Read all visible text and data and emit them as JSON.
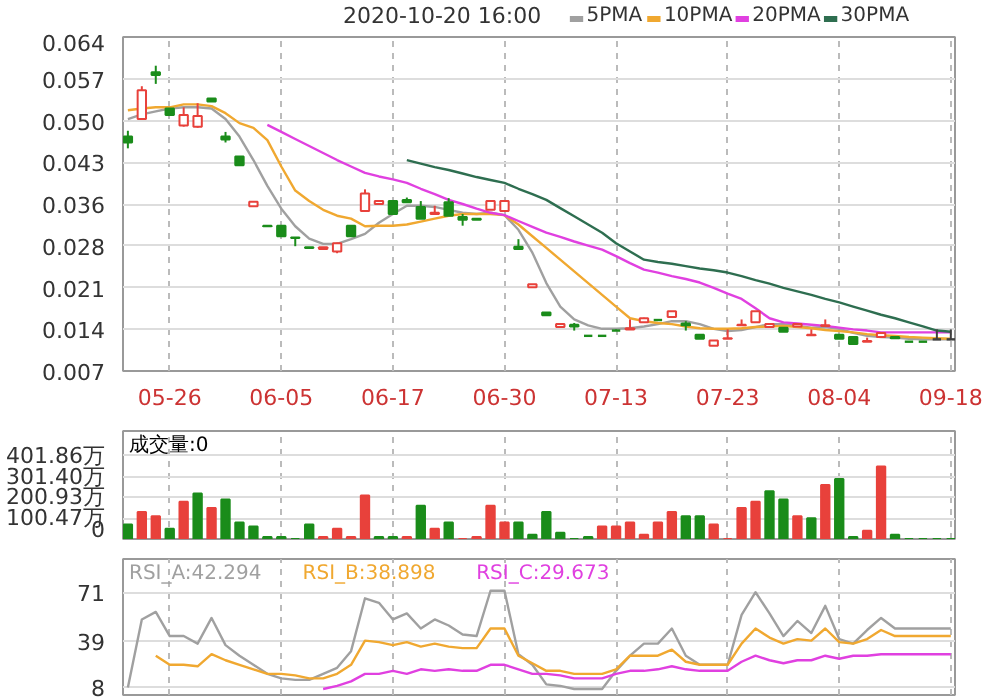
{
  "chart_data": [
    {
      "type": "candlestick",
      "title": "2020-10-20 16:00",
      "categories": [
        null,
        null,
        null,
        "05-26",
        null,
        null,
        null,
        null,
        null,
        null,
        null,
        "06-05",
        null,
        null,
        null,
        null,
        null,
        null,
        null,
        "06-17",
        null,
        null,
        null,
        null,
        null,
        null,
        null,
        "06-30",
        null,
        null,
        null,
        null,
        null,
        null,
        null,
        "07-13",
        null,
        null,
        null,
        null,
        null,
        null,
        null,
        "07-23",
        null,
        null,
        null,
        null,
        null,
        null,
        null,
        "08-04",
        null,
        null,
        null,
        null,
        null,
        null,
        null,
        "09-18"
      ],
      "ohlc": [
        [
          0.047,
          0.048,
          0.045,
          0.046
        ],
        [
          0.05,
          0.0556,
          0.05,
          0.0549
        ],
        [
          0.058,
          0.0591,
          0.056,
          0.0575
        ],
        [
          0.0518,
          0.0518,
          0.0507,
          0.0507
        ],
        [
          0.0489,
          0.052,
          0.0487,
          0.0507
        ],
        [
          0.0487,
          0.0527,
          0.0485,
          0.0505
        ],
        [
          0.0535,
          0.0535,
          0.053,
          0.053
        ],
        [
          0.047,
          0.0478,
          0.046,
          0.0465
        ],
        [
          0.0436,
          0.0436,
          0.0421,
          0.0421
        ],
        [
          0.0351,
          0.0359,
          0.0351,
          0.0359
        ],
        [
          0.0318,
          0.0318,
          0.0317,
          0.0317
        ],
        [
          0.0318,
          0.0318,
          0.03,
          0.03
        ],
        [
          0.0298,
          0.0298,
          0.0283,
          0.0297
        ],
        [
          0.0281,
          0.0281,
          0.028,
          0.028
        ],
        [
          0.0278,
          0.0281,
          0.0278,
          0.0281
        ],
        [
          0.0274,
          0.0289,
          0.0271,
          0.0288
        ],
        [
          0.0318,
          0.0318,
          0.03,
          0.03
        ],
        [
          0.0343,
          0.038,
          0.0342,
          0.0373
        ],
        [
          0.0355,
          0.036,
          0.0355,
          0.036
        ],
        [
          0.036,
          0.036,
          0.0337,
          0.0338
        ],
        [
          0.0362,
          0.0366,
          0.0358,
          0.0358
        ],
        [
          0.035,
          0.036,
          0.033,
          0.033
        ],
        [
          0.0338,
          0.0352,
          0.0338,
          0.034
        ],
        [
          0.0358,
          0.0365,
          0.0335,
          0.0335
        ],
        [
          0.0333,
          0.0338,
          0.0318,
          0.0328
        ],
        [
          0.033,
          0.033,
          0.0328,
          0.0328
        ],
        [
          0.0345,
          0.036,
          0.0345,
          0.036
        ],
        [
          0.0343,
          0.036,
          0.0343,
          0.036
        ],
        [
          0.0282,
          0.0295,
          0.0278,
          0.0278
        ],
        [
          0.0213,
          0.0218,
          0.0213,
          0.0218
        ],
        [
          0.017,
          0.017,
          0.0165,
          0.0165
        ],
        [
          0.0145,
          0.015,
          0.0145,
          0.015
        ],
        [
          0.0149,
          0.0152,
          0.0139,
          0.0146
        ],
        [
          0.013,
          0.013,
          0.013,
          0.013
        ],
        [
          0.013,
          0.013,
          0.013,
          0.013
        ],
        [
          0.0139,
          0.0141,
          0.0139,
          0.0139
        ],
        [
          0.0141,
          0.0158,
          0.0141,
          0.0143
        ],
        [
          0.0153,
          0.0161,
          0.0153,
          0.016
        ],
        [
          0.0157,
          0.0157,
          0.0157,
          0.0157
        ],
        [
          0.0162,
          0.0172,
          0.0162,
          0.0172
        ],
        [
          0.0151,
          0.0155,
          0.0139,
          0.0148
        ],
        [
          0.0132,
          0.0132,
          0.0125,
          0.0125
        ],
        [
          0.0113,
          0.0122,
          0.0113,
          0.0122
        ],
        [
          0.0125,
          0.0141,
          0.0125,
          0.0126
        ],
        [
          0.0148,
          0.0158,
          0.0148,
          0.0149
        ],
        [
          0.0153,
          0.0172,
          0.0153,
          0.0172
        ],
        [
          0.0145,
          0.015,
          0.0145,
          0.015
        ],
        [
          0.0144,
          0.0144,
          0.0137,
          0.0137
        ],
        [
          0.0146,
          0.015,
          0.0146,
          0.015
        ],
        [
          0.0131,
          0.0141,
          0.0131,
          0.0132
        ],
        [
          0.0147,
          0.0158,
          0.0147,
          0.0148
        ],
        [
          0.0132,
          0.0132,
          0.0125,
          0.0125
        ],
        [
          0.0128,
          0.0128,
          0.0116,
          0.0116
        ],
        [
          0.012,
          0.0127,
          0.012,
          0.0121
        ],
        [
          0.0128,
          0.0135,
          0.0128,
          0.0135
        ],
        [
          0.0128,
          0.0128,
          0.0126,
          0.0126
        ],
        [
          0.012,
          0.012,
          0.012,
          0.012
        ],
        [
          0.012,
          0.012,
          0.012,
          0.012
        ],
        [
          0.0124,
          0.0141,
          0.0124,
          0.0124
        ],
        [
          0.0124,
          0.0141,
          0.0124,
          0.0124
        ]
      ],
      "colors": [
        "#1a8c1a",
        "#e8413b",
        "#1a8c1a",
        "#1a8c1a",
        "#e8413b",
        "#e8413b",
        "#1a8c1a",
        "#1a8c1a",
        "#1a8c1a",
        "#e8413b",
        "#1a8c1a",
        "#1a8c1a",
        "#1a8c1a",
        "#1a8c1a",
        "#e8413b",
        "#e8413b",
        "#1a8c1a",
        "#e8413b",
        "#e8413b",
        "#1a8c1a",
        "#1a8c1a",
        "#1a8c1a",
        "#e8413b",
        "#1a8c1a",
        "#1a8c1a",
        "#1a8c1a",
        "#e8413b",
        "#e8413b",
        "#1a8c1a",
        "#e8413b",
        "#1a8c1a",
        "#e8413b",
        "#1a8c1a",
        "#1a8c1a",
        "#1a8c1a",
        "#1a8c1a",
        "#e8413b",
        "#e8413b",
        "#1a8c1a",
        "#e8413b",
        "#1a8c1a",
        "#1a8c1a",
        "#e8413b",
        "#e8413b",
        "#e8413b",
        "#e8413b",
        "#e8413b",
        "#1a8c1a",
        "#e8413b",
        "#e8413b",
        "#e8413b",
        "#1a8c1a",
        "#1a8c1a",
        "#e8413b",
        "#e8413b",
        "#1a8c1a",
        "#1a8c1a",
        "#1a8c1a",
        "#404040",
        "#404040"
      ],
      "series": [
        {
          "name": "5PMA",
          "type": "line",
          "color": "#a0a0a0",
          "values": [
            0.05,
            0.0508,
            0.0513,
            0.0518,
            0.052,
            0.052,
            0.0518,
            0.05,
            0.047,
            0.043,
            0.0386,
            0.0347,
            0.0317,
            0.0296,
            0.0287,
            0.0287,
            0.0295,
            0.0304,
            0.0323,
            0.0338,
            0.0352,
            0.0352,
            0.035,
            0.0345,
            0.034,
            0.0338,
            0.034,
            0.0336,
            0.0311,
            0.0272,
            0.022,
            0.018,
            0.0158,
            0.0148,
            0.0142,
            0.0142,
            0.0143,
            0.0146,
            0.015,
            0.0155,
            0.0155,
            0.015,
            0.0142,
            0.0138,
            0.014,
            0.0145,
            0.015,
            0.015,
            0.0147,
            0.0144,
            0.0145,
            0.0142,
            0.0135,
            0.013,
            0.0128,
            0.0127,
            0.0125,
            0.0124,
            0.0124,
            0.0124
          ]
        },
        {
          "name": "10PMA",
          "type": "line",
          "color": "#f0a830",
          "values": [
            0.0515,
            0.0518,
            0.052,
            0.052,
            0.0525,
            0.0525,
            0.0522,
            0.051,
            0.0493,
            0.0485,
            0.0464,
            0.0419,
            0.0378,
            0.036,
            0.0345,
            0.0335,
            0.033,
            0.0317,
            0.0318,
            0.0318,
            0.032,
            0.0325,
            0.033,
            0.0335,
            0.0338,
            0.0338,
            0.0338,
            0.0336,
            0.032,
            0.03,
            0.028,
            0.026,
            0.024,
            0.022,
            0.02,
            0.018,
            0.016,
            0.0155,
            0.0152,
            0.015,
            0.0146,
            0.0143,
            0.0142,
            0.0142,
            0.0143,
            0.0145,
            0.0146,
            0.0147,
            0.0145,
            0.0143,
            0.014,
            0.0138,
            0.0136,
            0.0133,
            0.0131,
            0.013,
            0.0128,
            0.0127,
            0.0126,
            0.0125
          ]
        },
        {
          "name": "20PMA",
          "type": "line",
          "color": "#e040e0",
          "values": [
            null,
            null,
            null,
            null,
            null,
            null,
            null,
            null,
            null,
            null,
            0.049,
            0.0478,
            0.0466,
            0.0454,
            0.0442,
            0.043,
            0.0419,
            0.0408,
            0.0402,
            0.0397,
            0.0391,
            0.0381,
            0.0372,
            0.0362,
            0.0355,
            0.0347,
            0.034,
            0.0336,
            0.0326,
            0.0316,
            0.0306,
            0.0299,
            0.0291,
            0.0284,
            0.0277,
            0.0266,
            0.0254,
            0.0243,
            0.0238,
            0.0232,
            0.0227,
            0.0221,
            0.0212,
            0.0202,
            0.0193,
            0.0177,
            0.016,
            0.0153,
            0.0151,
            0.0149,
            0.0147,
            0.0144,
            0.0141,
            0.0139,
            0.0136,
            0.0136,
            0.0136,
            0.0136,
            0.0136,
            0.0136
          ]
        },
        {
          "name": "30PMA",
          "type": "line",
          "color": "#2e6e50",
          "values": [
            null,
            null,
            null,
            null,
            null,
            null,
            null,
            null,
            null,
            null,
            null,
            null,
            null,
            null,
            null,
            null,
            null,
            null,
            null,
            null,
            0.043,
            0.0424,
            0.0418,
            0.0413,
            0.0407,
            0.0401,
            0.0396,
            0.0391,
            0.0381,
            0.0372,
            0.0362,
            0.0348,
            0.0334,
            0.032,
            0.0306,
            0.0288,
            0.0274,
            0.026,
            0.0256,
            0.0253,
            0.0249,
            0.0245,
            0.0242,
            0.0238,
            0.0232,
            0.0225,
            0.0219,
            0.0212,
            0.0206,
            0.02,
            0.0193,
            0.0187,
            0.018,
            0.0173,
            0.0166,
            0.016,
            0.0153,
            0.0146,
            0.0139,
            0.0137
          ]
        }
      ],
      "ylim": [
        0.007,
        0.064
      ],
      "yticks": [
        0.007,
        {
          "value": 0.014125,
          "label": "0.014"
        },
        {
          "value": 0.02125,
          "label": "0.021"
        },
        {
          "value": 0.028375,
          "label": "0.028"
        },
        {
          "value": 0.0355,
          "label": "0.036"
        },
        {
          "value": 0.042625,
          "label": "0.043"
        },
        {
          "value": 0.04975,
          "label": "0.050"
        },
        {
          "value": 0.056875,
          "label": "0.057"
        },
        0.064
      ],
      "grid": true,
      "legend": "top right"
    },
    {
      "type": "bar",
      "categories": [
        null,
        null,
        null,
        null,
        null,
        null,
        null,
        null,
        null,
        null,
        null,
        null,
        null,
        null,
        null,
        null,
        null,
        null,
        null,
        null,
        null,
        null,
        null,
        null,
        null,
        null,
        null,
        null,
        null,
        null,
        null,
        null,
        null,
        null,
        null,
        null,
        null,
        null,
        null,
        null,
        null,
        null,
        null,
        null,
        null,
        null,
        null,
        null,
        null,
        null,
        null,
        null,
        null,
        null,
        null,
        null,
        null,
        null,
        null,
        null
      ],
      "values": [
        70,
        130,
        110,
        50,
        180,
        220,
        150,
        190,
        80,
        60,
        10,
        10,
        0,
        70,
        10,
        50,
        10,
        210,
        10,
        10,
        10,
        160,
        50,
        80,
        0,
        10,
        160,
        80,
        80,
        20,
        130,
        30,
        0,
        10,
        60,
        60,
        80,
        20,
        80,
        130,
        110,
        110,
        70,
        0,
        150,
        180,
        230,
        190,
        110,
        100,
        260,
        290,
        10,
        40,
        350,
        20,
        0,
        0,
        0,
        0
      ],
      "colors": [
        "#1a8c1a",
        "#e8413b",
        "#e8413b",
        "#1a8c1a",
        "#e8413b",
        "#1a8c1a",
        "#e8413b",
        "#1a8c1a",
        "#1a8c1a",
        "#1a8c1a",
        "#1a8c1a",
        "#1a8c1a",
        "#1a8c1a",
        "#1a8c1a",
        "#e8413b",
        "#e8413b",
        "#e8413b",
        "#e8413b",
        "#1a8c1a",
        "#1a8c1a",
        "#e8413b",
        "#1a8c1a",
        "#e8413b",
        "#1a8c1a",
        "#e8413b",
        "#e8413b",
        "#e8413b",
        "#e8413b",
        "#1a8c1a",
        "#1a8c1a",
        "#1a8c1a",
        "#1a8c1a",
        "#1a8c1a",
        "#1a8c1a",
        "#e8413b",
        "#e8413b",
        "#e8413b",
        "#e8413b",
        "#e8413b",
        "#e8413b",
        "#1a8c1a",
        "#1a8c1a",
        "#e8413b",
        "#e8413b",
        "#e8413b",
        "#e8413b",
        "#1a8c1a",
        "#1a8c1a",
        "#e8413b",
        "#1a8c1a",
        "#e8413b",
        "#1a8c1a",
        "#1a8c1a",
        "#e8413b",
        "#e8413b",
        "#1a8c1a",
        "#1a8c1a",
        "#1a8c1a",
        "#1a8c1a",
        "#1a8c1a"
      ],
      "ylim": [
        0,
        521
      ],
      "yticks": [
        0,
        {
          "value": 100.47,
          "label": "100.47万"
        },
        {
          "value": 200.93,
          "label": "200.93万"
        },
        {
          "value": 301.4,
          "label": "301.40万"
        },
        {
          "value": 401.86,
          "label": "401.86万"
        }
      ],
      "annotations": [
        "成交量:0"
      ],
      "grid": true,
      "tick_labels": "y"
    },
    {
      "type": "line",
      "categories": [
        null,
        null,
        null,
        null,
        null,
        null,
        null,
        null,
        null,
        null,
        null,
        null,
        null,
        null,
        null,
        null,
        null,
        null,
        null,
        null,
        null,
        null,
        null,
        null,
        null,
        null,
        null,
        null,
        null,
        null,
        null,
        null,
        null,
        null,
        null,
        null,
        null,
        null,
        null,
        null,
        null,
        null,
        null,
        null,
        null,
        null,
        null,
        null,
        null,
        null,
        null,
        null,
        null,
        null,
        null,
        null,
        null,
        null,
        null,
        null
      ],
      "series": [
        {
          "name": "RSI_A:42.294",
          "color": "#a0a0a0",
          "values": [
            8,
            53,
            58,
            42,
            42,
            37,
            54,
            36,
            29,
            23,
            17,
            14,
            13,
            13,
            17,
            21,
            32,
            67,
            64,
            53,
            57,
            47,
            53,
            49,
            43,
            42,
            72,
            72,
            30,
            23,
            10,
            9,
            7,
            7,
            7,
            19,
            29,
            37,
            37,
            47,
            29,
            23,
            23,
            23,
            56,
            71,
            57,
            42,
            52,
            44,
            62,
            40,
            37,
            46,
            54,
            47,
            47,
            47,
            47,
            47
          ]
        },
        {
          "name": "RSI_B:38.898",
          "color": "#f0a830",
          "values": [
            null,
            null,
            29,
            23,
            23,
            22,
            30,
            26,
            23,
            20,
            17,
            17,
            16,
            14,
            14,
            17,
            23,
            39,
            38,
            36,
            38,
            35,
            37,
            35,
            34,
            34,
            47,
            47,
            29,
            24,
            19,
            19,
            17,
            17,
            17,
            20,
            29,
            29,
            29,
            33,
            25,
            23,
            23,
            23,
            37,
            47,
            41,
            37,
            40,
            39,
            47,
            38,
            37,
            40,
            46,
            42,
            42,
            42,
            42,
            42
          ]
        },
        {
          "name": "RSI_C:29.673",
          "color": "#e040e0",
          "values": [
            null,
            null,
            null,
            null,
            null,
            null,
            null,
            null,
            null,
            null,
            null,
            null,
            null,
            null,
            7,
            9,
            12,
            17,
            17,
            19,
            17,
            20,
            19,
            20,
            19,
            19,
            23,
            23,
            20,
            17,
            17,
            16,
            14,
            14,
            14,
            17,
            19,
            19,
            20,
            22,
            20,
            19,
            19,
            19,
            25,
            29,
            26,
            24,
            26,
            26,
            29,
            27,
            29,
            29,
            30,
            30,
            30,
            30,
            30,
            30
          ]
        }
      ],
      "ylim": [
        3,
        93
      ],
      "yticks": [
        8,
        39,
        71
      ],
      "grid": true,
      "legend": "top left",
      "tick_labels": "y"
    }
  ]
}
